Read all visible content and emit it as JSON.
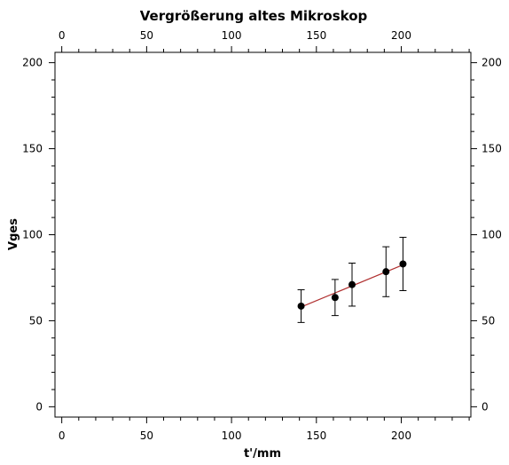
{
  "chart_data": {
    "type": "scatter",
    "title": "Vergrößerung altes Mikroskop",
    "xlabel": "t'/mm",
    "ylabel": "Vges",
    "xlim": [
      -4,
      241
    ],
    "ylim": [
      -6,
      206
    ],
    "xticks_major": [
      0,
      50,
      100,
      150,
      200
    ],
    "yticks_major": [
      0,
      50,
      100,
      150,
      200
    ],
    "tick_labels_x": [
      "0",
      "50",
      "100",
      "150",
      "200"
    ],
    "tick_labels_y": [
      "0",
      "50",
      "100",
      "150",
      "200"
    ],
    "axes_mirrored": true,
    "grid": false,
    "points": [
      {
        "x": 141,
        "y": 58.5,
        "err": 9.5
      },
      {
        "x": 161,
        "y": 63.5,
        "err": 10.5
      },
      {
        "x": 171,
        "y": 71,
        "err": 12.5
      },
      {
        "x": 191,
        "y": 78.5,
        "err": 14.5
      },
      {
        "x": 201,
        "y": 83,
        "err": 15.5
      }
    ],
    "fit_line": {
      "x": [
        141,
        201
      ],
      "y": [
        58,
        82.5
      ],
      "color": "#b03030"
    },
    "marker_color": "#000000"
  }
}
